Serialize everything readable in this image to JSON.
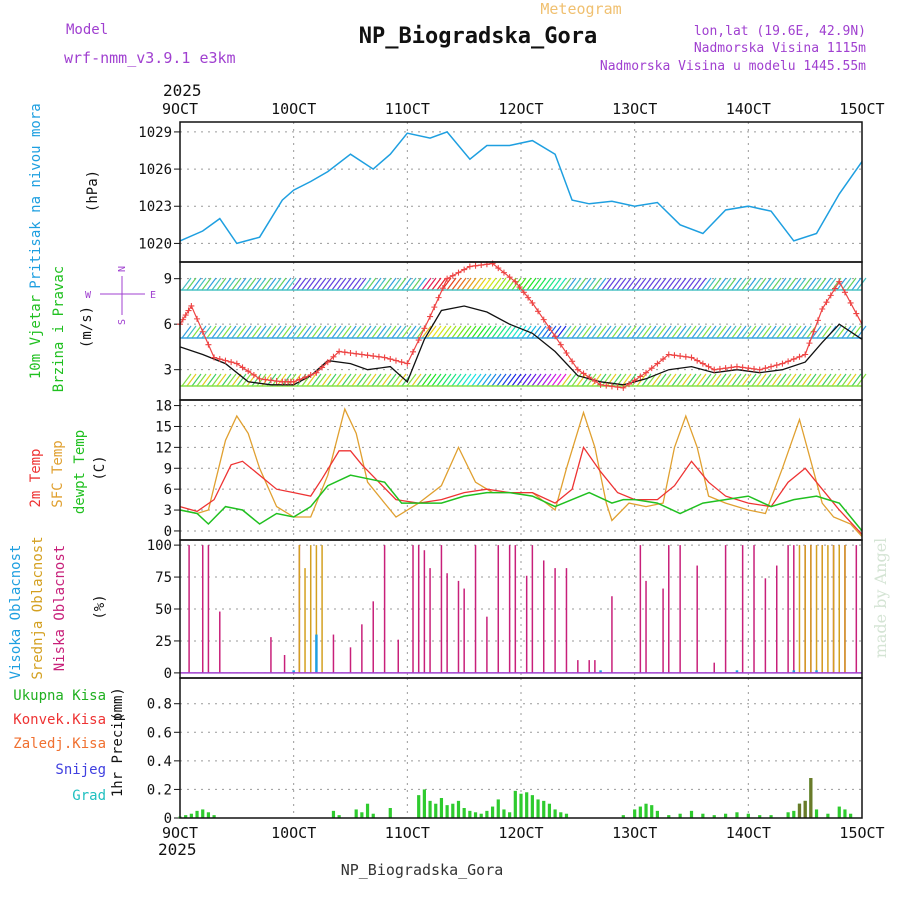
{
  "header": {
    "model_label": "Model",
    "model_name": "wrf-nmm_v3.9.1 e3km",
    "chart_kind": "Meteogram",
    "station": "NP_Biogradska_Gora",
    "coords": "lon,lat (19.6E, 42.9N)",
    "elevation": "Nadmorska Visina 1115m",
    "model_elevation": "Nadmorska Visina u modelu 1445.55m",
    "year_top": "2025",
    "year_bottom": "2025",
    "footer_station": "NP_Biogradska_Gora",
    "credit": "made by Angel"
  },
  "colors": {
    "pressure": "#1e9fe0",
    "wind_label": "#20c020",
    "temp2m": "#ee3333",
    "sfc": "#e0a030",
    "dewpoint": "#20c020",
    "high_cloud": "#1e9fe0",
    "mid_cloud": "#d4a020",
    "low_cloud": "#c8207a",
    "purple": "#a040d0",
    "precip": "#2ecb2e"
  },
  "chart_data": [
    {
      "type": "line",
      "panel": "pressure",
      "ylabel": "Pritisak na nivou mora",
      "unit": "(hPa)",
      "x_ticks": [
        "9OCT",
        "10OCT",
        "11OCT",
        "12OCT",
        "13OCT",
        "14OCT",
        "15OCT"
      ],
      "ylim": [
        1018.5,
        1029.8
      ],
      "y_ticks": [
        1020,
        1023,
        1026,
        1029
      ],
      "series": [
        {
          "name": "Pressure",
          "x": [
            9.0,
            9.2,
            9.35,
            9.5,
            9.7,
            9.9,
            10.0,
            10.15,
            10.3,
            10.5,
            10.7,
            10.85,
            11.0,
            11.2,
            11.35,
            11.55,
            11.7,
            11.9,
            12.1,
            12.3,
            12.45,
            12.6,
            12.8,
            13.0,
            13.2,
            13.4,
            13.6,
            13.8,
            14.0,
            14.2,
            14.4,
            14.6,
            14.8,
            15.0
          ],
          "values": [
            1020.2,
            1021.0,
            1022.0,
            1020.0,
            1020.5,
            1023.5,
            1024.3,
            1025.0,
            1025.8,
            1027.2,
            1026.0,
            1027.2,
            1028.9,
            1028.5,
            1029.0,
            1026.8,
            1027.9,
            1027.9,
            1028.3,
            1027.2,
            1023.5,
            1023.2,
            1023.4,
            1023.0,
            1023.3,
            1021.5,
            1020.8,
            1022.7,
            1023.0,
            1022.6,
            1020.2,
            1020.8,
            1024.0,
            1026.6
          ]
        }
      ]
    },
    {
      "type": "line",
      "panel": "wind",
      "ylabel": "10m Vjetar",
      "ylabel2": "Brzina i Pravac",
      "unit": "(m/s)",
      "compass": [
        "N",
        "W",
        "E",
        "S"
      ],
      "ylim": [
        1.0,
        10.1
      ],
      "y_ticks": [
        3,
        6,
        9
      ],
      "series": [
        {
          "name": "Wind speed",
          "x": [
            9.0,
            9.2,
            9.4,
            9.6,
            9.8,
            10.0,
            10.15,
            10.3,
            10.5,
            10.65,
            10.85,
            11.0,
            11.15,
            11.3,
            11.5,
            11.7,
            11.9,
            12.1,
            12.3,
            12.5,
            12.7,
            12.9,
            13.1,
            13.3,
            13.5,
            13.7,
            13.9,
            14.1,
            14.3,
            14.5,
            14.65,
            14.8,
            15.0
          ],
          "values": [
            4.5,
            4.0,
            3.4,
            2.2,
            2.0,
            2.0,
            2.6,
            3.6,
            3.4,
            3.0,
            3.2,
            2.2,
            5.0,
            6.9,
            7.2,
            6.8,
            6.0,
            5.4,
            4.2,
            2.6,
            2.2,
            2.0,
            2.4,
            3.0,
            3.2,
            2.8,
            3.0,
            2.8,
            3.0,
            3.5,
            4.8,
            6.0,
            5.0
          ]
        },
        {
          "name": "Wind gust",
          "x": [
            9.0,
            9.1,
            9.3,
            9.5,
            9.7,
            9.9,
            10.0,
            10.2,
            10.4,
            10.6,
            10.8,
            11.0,
            11.2,
            11.35,
            11.55,
            11.75,
            11.95,
            12.1,
            12.3,
            12.5,
            12.7,
            12.9,
            13.1,
            13.3,
            13.5,
            13.7,
            13.9,
            14.1,
            14.3,
            14.5,
            14.65,
            14.8,
            15.0
          ],
          "values": [
            6.0,
            7.2,
            3.8,
            3.4,
            2.4,
            2.2,
            2.2,
            2.8,
            4.2,
            4.0,
            3.8,
            3.4,
            6.5,
            9.0,
            9.8,
            10.0,
            8.8,
            7.4,
            5.2,
            3.0,
            2.0,
            1.8,
            2.8,
            4.0,
            3.8,
            3.0,
            3.2,
            3.0,
            3.4,
            4.0,
            7.0,
            8.8,
            6.0
          ]
        }
      ]
    },
    {
      "type": "line",
      "panel": "temperature",
      "ylabel": "2m Temp",
      "ylabel2": "SFC Temp",
      "ylabel3": "dewpt Temp",
      "unit": "(C)",
      "ylim": [
        -1.3,
        18.8
      ],
      "y_ticks": [
        0,
        3,
        6,
        9,
        12,
        15,
        18
      ],
      "series": [
        {
          "name": "2m Temp",
          "x": [
            9.0,
            9.15,
            9.3,
            9.45,
            9.55,
            9.7,
            9.85,
            10.0,
            10.15,
            10.25,
            10.4,
            10.5,
            10.6,
            10.75,
            10.9,
            11.1,
            11.3,
            11.5,
            11.7,
            11.9,
            12.1,
            12.3,
            12.45,
            12.55,
            12.7,
            12.85,
            13.0,
            13.2,
            13.35,
            13.5,
            13.65,
            13.8,
            14.0,
            14.2,
            14.35,
            14.5,
            14.65,
            14.8,
            15.0
          ],
          "values": [
            3.5,
            2.8,
            4.5,
            9.5,
            10.0,
            8.0,
            6.0,
            5.5,
            5.0,
            7.5,
            11.5,
            11.5,
            9.5,
            7.0,
            4.5,
            4.0,
            4.5,
            5.5,
            6.0,
            5.5,
            5.5,
            4.0,
            6.0,
            12.0,
            8.5,
            5.5,
            4.5,
            4.5,
            6.5,
            10.0,
            7.0,
            5.0,
            4.0,
            3.5,
            7.0,
            9.0,
            6.0,
            3.0,
            -0.5
          ]
        },
        {
          "name": "SFC Temp",
          "x": [
            9.0,
            9.15,
            9.25,
            9.4,
            9.5,
            9.6,
            9.7,
            9.85,
            10.0,
            10.15,
            10.3,
            10.45,
            10.55,
            10.65,
            10.8,
            10.9,
            11.1,
            11.3,
            11.45,
            11.6,
            11.75,
            11.9,
            12.1,
            12.3,
            12.4,
            12.55,
            12.65,
            12.75,
            12.8,
            12.95,
            13.1,
            13.25,
            13.35,
            13.45,
            13.55,
            13.65,
            13.8,
            14.0,
            14.15,
            14.3,
            14.45,
            14.55,
            14.65,
            14.75,
            14.9,
            15.0
          ],
          "values": [
            3.0,
            2.5,
            3.0,
            13.0,
            16.5,
            14.0,
            9.0,
            3.5,
            2.0,
            2.0,
            8.0,
            17.5,
            14.0,
            7.0,
            4.0,
            2.0,
            4.0,
            6.5,
            12.0,
            7.0,
            5.5,
            5.5,
            5.5,
            3.0,
            9.0,
            17.0,
            12.0,
            4.0,
            1.5,
            4.0,
            3.5,
            4.0,
            12.0,
            16.5,
            12.0,
            5.0,
            4.0,
            3.0,
            2.5,
            9.0,
            16.0,
            10.0,
            4.0,
            2.0,
            1.0,
            -0.8
          ]
        },
        {
          "name": "Dew point",
          "x": [
            9.0,
            9.15,
            9.25,
            9.4,
            9.55,
            9.7,
            9.85,
            10.0,
            10.15,
            10.3,
            10.5,
            10.65,
            10.8,
            10.95,
            11.1,
            11.3,
            11.5,
            11.7,
            11.9,
            12.1,
            12.3,
            12.45,
            12.6,
            12.8,
            12.9,
            13.0,
            13.2,
            13.4,
            13.6,
            13.8,
            14.0,
            14.2,
            14.4,
            14.6,
            14.8,
            15.0
          ],
          "values": [
            3.0,
            2.5,
            1.0,
            3.5,
            3.0,
            1.0,
            2.5,
            2.0,
            3.5,
            6.5,
            8.0,
            7.5,
            7.0,
            4.0,
            4.0,
            4.0,
            5.0,
            5.5,
            5.5,
            5.0,
            3.5,
            4.5,
            5.5,
            4.0,
            4.5,
            4.5,
            4.0,
            2.5,
            4.0,
            4.5,
            5.0,
            3.5,
            4.5,
            5.0,
            4.0,
            0.0
          ]
        }
      ]
    },
    {
      "type": "bar",
      "panel": "cloud",
      "ylabel": "Visoka Oblacnost",
      "ylabel2": "Srednja Oblacnost",
      "ylabel3": "Niska Oblacnost",
      "unit": "(%)",
      "ylim": [
        -4,
        104
      ],
      "y_ticks": [
        0,
        25,
        50,
        75,
        100
      ],
      "series": [
        {
          "name": "Niska Oblacnost",
          "x": [
            9.08,
            9.2,
            9.25,
            9.35,
            9.8,
            9.92,
            10.05,
            10.35,
            10.5,
            10.6,
            10.7,
            10.8,
            10.92,
            11.05,
            11.1,
            11.15,
            11.2,
            11.3,
            11.35,
            11.45,
            11.5,
            11.6,
            11.7,
            11.8,
            11.9,
            11.95,
            12.05,
            12.1,
            12.2,
            12.3,
            12.4,
            12.5,
            12.6,
            12.65,
            12.8,
            13.05,
            13.1,
            13.25,
            13.3,
            13.4,
            13.55,
            13.7,
            13.8,
            13.95,
            14.05,
            14.15,
            14.25,
            14.35,
            14.4,
            14.5,
            14.55,
            14.65,
            14.75,
            14.85,
            14.95
          ],
          "values": [
            100,
            100,
            100,
            48,
            28,
            14,
            100,
            30,
            20,
            38,
            56,
            100,
            26,
            100,
            100,
            96,
            82,
            100,
            78,
            72,
            66,
            100,
            44,
            100,
            100,
            100,
            76,
            100,
            88,
            82,
            82,
            10,
            10,
            10,
            60,
            100,
            72,
            66,
            100,
            100,
            84,
            8,
            100,
            100,
            100,
            74,
            84,
            100,
            100,
            100,
            100,
            100,
            100,
            100,
            100
          ]
        },
        {
          "name": "Srednja Oblacnost",
          "x": [
            10.05,
            10.1,
            10.15,
            10.2,
            10.25,
            14.45,
            14.5,
            14.55,
            14.6,
            14.65,
            14.7,
            14.75,
            14.8,
            14.85
          ],
          "values": [
            100,
            82,
            100,
            100,
            100,
            100,
            100,
            100,
            100,
            100,
            100,
            100,
            100,
            100
          ]
        },
        {
          "name": "Visoka Oblacnost",
          "x": [
            10.0,
            10.2,
            12.7,
            13.9,
            14.4,
            14.6
          ],
          "values": [
            2,
            30,
            2,
            2,
            2,
            2
          ]
        }
      ]
    },
    {
      "type": "bar",
      "panel": "precip",
      "ylabel": "1hr Precip",
      "unit": "(mm)",
      "legend": [
        "Ukupna Kisa",
        "Konvek.Kisa",
        "Zaledj.Kisa",
        "Snijeg",
        "Grad"
      ],
      "ylim": [
        0,
        0.98
      ],
      "y_ticks": [
        0,
        0.2,
        0.4,
        0.6,
        0.8
      ],
      "series": [
        {
          "name": "Ukupna Kisa",
          "x": [
            9.0,
            9.05,
            9.1,
            9.15,
            9.2,
            9.25,
            9.3,
            10.35,
            10.4,
            10.55,
            10.6,
            10.65,
            10.7,
            10.85,
            11.1,
            11.15,
            11.2,
            11.25,
            11.3,
            11.35,
            11.4,
            11.45,
            11.5,
            11.55,
            11.6,
            11.65,
            11.7,
            11.75,
            11.8,
            11.85,
            11.9,
            11.95,
            12.0,
            12.05,
            12.1,
            12.15,
            12.2,
            12.25,
            12.3,
            12.35,
            12.4,
            12.9,
            13.0,
            13.05,
            13.1,
            13.15,
            13.2,
            13.3,
            13.4,
            13.5,
            13.6,
            13.7,
            13.8,
            13.9,
            14.0,
            14.1,
            14.2,
            14.35,
            14.4,
            14.45,
            14.5,
            14.55,
            14.6,
            14.7,
            14.8,
            14.85,
            14.9
          ],
          "values": [
            0.01,
            0.02,
            0.03,
            0.05,
            0.06,
            0.04,
            0.02,
            0.05,
            0.02,
            0.06,
            0.04,
            0.1,
            0.03,
            0.07,
            0.16,
            0.2,
            0.12,
            0.1,
            0.14,
            0.09,
            0.1,
            0.12,
            0.07,
            0.05,
            0.04,
            0.03,
            0.05,
            0.08,
            0.13,
            0.06,
            0.04,
            0.19,
            0.17,
            0.18,
            0.16,
            0.13,
            0.12,
            0.1,
            0.06,
            0.04,
            0.03,
            0.02,
            0.06,
            0.08,
            0.1,
            0.09,
            0.05,
            0.02,
            0.03,
            0.05,
            0.03,
            0.02,
            0.03,
            0.04,
            0.03,
            0.02,
            0.02,
            0.04,
            0.05,
            0.1,
            0.12,
            0.28,
            0.06,
            0.03,
            0.08,
            0.06,
            0.03
          ]
        },
        {
          "name": "Konvek.Kisa",
          "x": [
            14.45,
            14.5,
            14.55
          ],
          "values": [
            0.1,
            0.12,
            0.28
          ]
        }
      ]
    }
  ]
}
